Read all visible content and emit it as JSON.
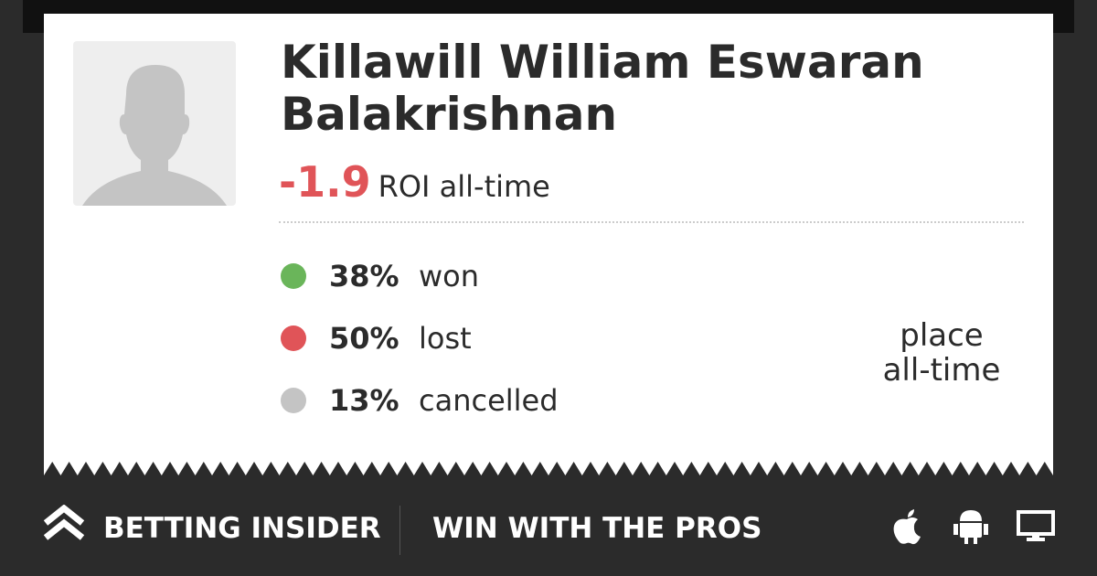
{
  "profile": {
    "name": "Killawill William Eswaran Balakrishnan",
    "roi": "-1.9",
    "roi_label": "ROI all-time",
    "stats": [
      {
        "percent": "38%",
        "label": "won",
        "color": "#6ab55a"
      },
      {
        "percent": "50%",
        "label": "lost",
        "color": "#e05458"
      },
      {
        "percent": "13%",
        "label": "cancelled",
        "color": "#c4c4c4"
      }
    ],
    "place": [
      "place",
      "all-time"
    ]
  },
  "footer": {
    "brand": "BETTING INSIDER",
    "tagline": "WIN WITH THE PROS"
  }
}
